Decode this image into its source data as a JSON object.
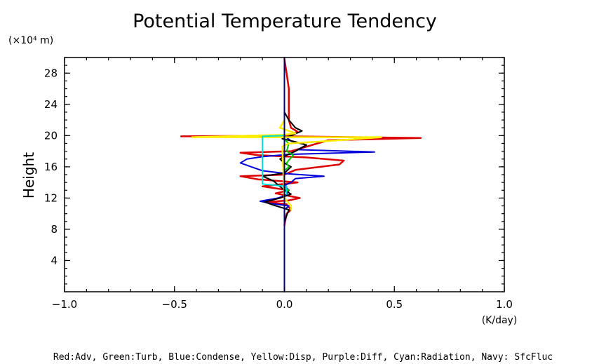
{
  "chart_data": {
    "type": "line",
    "title": "Potential Temperature Tendency",
    "xlabel": "(K/day)",
    "ylabel": "Height",
    "y_unit": "(×10⁴ m)",
    "xlim": [
      -1.0,
      1.0
    ],
    "ylim": [
      0,
      30
    ],
    "x_ticks": [
      {
        "value": -1.0,
        "label": "−1.0"
      },
      {
        "value": -0.5,
        "label": "−0.5"
      },
      {
        "value": 0.0,
        "label": "0.0"
      },
      {
        "value": 0.5,
        "label": "0.5"
      },
      {
        "value": 1.0,
        "label": "1.0"
      }
    ],
    "y_ticks": [
      {
        "value": 4,
        "label": "4"
      },
      {
        "value": 8,
        "label": "8"
      },
      {
        "value": 12,
        "label": "12"
      },
      {
        "value": 16,
        "label": "16"
      },
      {
        "value": 20,
        "label": "20"
      },
      {
        "value": 24,
        "label": "24"
      },
      {
        "value": 28,
        "label": "28"
      }
    ],
    "legend_text": "Red:Adv, Green:Turb, Blue:Condense, Yellow:Disp, Purple:Diff, Cyan:Radiation, Navy: SfcFluc",
    "grid": false,
    "series": [
      {
        "color": "#dd0000",
        "points": [
          [
            0,
            8.5
          ],
          [
            0.01,
            10
          ],
          [
            0.03,
            10.5
          ],
          [
            0.01,
            11.2
          ],
          [
            -0.08,
            11.5
          ],
          [
            0.02,
            11.7
          ],
          [
            0.07,
            12
          ],
          [
            -0.04,
            12.6
          ],
          [
            0.02,
            13.0
          ],
          [
            -0.1,
            13.5
          ],
          [
            0.06,
            14
          ],
          [
            -0.12,
            14.4
          ],
          [
            -0.2,
            14.8
          ],
          [
            0,
            15
          ],
          [
            0.05,
            15.6
          ],
          [
            0.25,
            16.3
          ],
          [
            0.27,
            16.8
          ],
          [
            0.1,
            17.2
          ],
          [
            -0.12,
            17.5
          ],
          [
            -0.2,
            17.8
          ],
          [
            0.03,
            18.0
          ],
          [
            0.08,
            18.4
          ],
          [
            0.15,
            19
          ],
          [
            0.2,
            19.4
          ],
          [
            0.62,
            19.7
          ],
          [
            0.0,
            19.9
          ],
          [
            -0.47,
            19.9
          ],
          [
            0.02,
            20.0
          ],
          [
            0.06,
            20.5
          ],
          [
            0.03,
            21
          ],
          [
            0.02,
            22
          ],
          [
            0.02,
            24
          ],
          [
            0.02,
            26
          ],
          [
            0.01,
            28
          ],
          [
            0,
            29.8
          ]
        ]
      },
      {
        "color": "#0000dd",
        "points": [
          [
            0,
            10.5
          ],
          [
            0.02,
            11
          ],
          [
            -0.06,
            11.3
          ],
          [
            -0.11,
            11.6
          ],
          [
            -0.03,
            12
          ],
          [
            0.01,
            12.4
          ],
          [
            0.02,
            13
          ],
          [
            0,
            13.6
          ],
          [
            0.03,
            14
          ],
          [
            0.05,
            14.5
          ],
          [
            0.18,
            14.8
          ],
          [
            0.02,
            15.1
          ],
          [
            -0.1,
            15.5
          ],
          [
            -0.15,
            16
          ],
          [
            -0.2,
            16.5
          ],
          [
            -0.17,
            17
          ],
          [
            -0.1,
            17.3
          ],
          [
            0.02,
            17.6
          ],
          [
            0.41,
            17.9
          ],
          [
            0.06,
            18.2
          ],
          [
            0.1,
            18.8
          ],
          [
            0.03,
            19.3
          ],
          [
            0,
            20
          ]
        ]
      },
      {
        "color": "#000000",
        "points": [
          [
            0,
            9
          ],
          [
            0.02,
            10.5
          ],
          [
            -0.05,
            11.1
          ],
          [
            -0.09,
            11.5
          ],
          [
            -0.02,
            12
          ],
          [
            0.03,
            12.5
          ],
          [
            0,
            13
          ],
          [
            -0.05,
            14.2
          ],
          [
            -0.1,
            14.8
          ],
          [
            0,
            15.2
          ],
          [
            0.03,
            16
          ],
          [
            0,
            16.5
          ],
          [
            -0.02,
            17
          ],
          [
            0.01,
            17.5
          ],
          [
            0.05,
            18
          ],
          [
            0.1,
            18.8
          ],
          [
            0.05,
            19.2
          ],
          [
            -0.01,
            19.6
          ],
          [
            0.03,
            20
          ],
          [
            0.08,
            20.6
          ],
          [
            0.05,
            21
          ],
          [
            0.02,
            22
          ],
          [
            0,
            23
          ]
        ]
      },
      {
        "color": "#00cc00",
        "points": [
          [
            0,
            12.8
          ],
          [
            0.02,
            13
          ],
          [
            0,
            13.2
          ],
          [
            0,
            15.5
          ],
          [
            0.02,
            16
          ],
          [
            0.01,
            16.5
          ],
          [
            0.04,
            17.5
          ],
          [
            0.01,
            18
          ],
          [
            0.02,
            19
          ],
          [
            0,
            19.5
          ]
        ]
      },
      {
        "color": "#ffee00",
        "points": [
          [
            0.03,
            10.5
          ],
          [
            0.03,
            11
          ],
          [
            0,
            12
          ],
          [
            -0.01,
            18.6
          ],
          [
            0.02,
            19
          ],
          [
            0.2,
            19.3
          ],
          [
            0.44,
            19.8
          ],
          [
            -0.42,
            19.8
          ],
          [
            0,
            20.1
          ],
          [
            0.05,
            20.3
          ],
          [
            -0.02,
            21
          ],
          [
            0,
            22
          ]
        ]
      },
      {
        "color": "#00dddd",
        "points": [
          [
            0.01,
            12.5
          ],
          [
            0.01,
            13.5
          ],
          [
            -0.1,
            13.8
          ],
          [
            -0.1,
            17
          ],
          [
            -0.1,
            19.9
          ],
          [
            0,
            20
          ]
        ]
      },
      {
        "color": "#000080",
        "points": [
          [
            0,
            0
          ],
          [
            0,
            30
          ]
        ]
      }
    ]
  }
}
